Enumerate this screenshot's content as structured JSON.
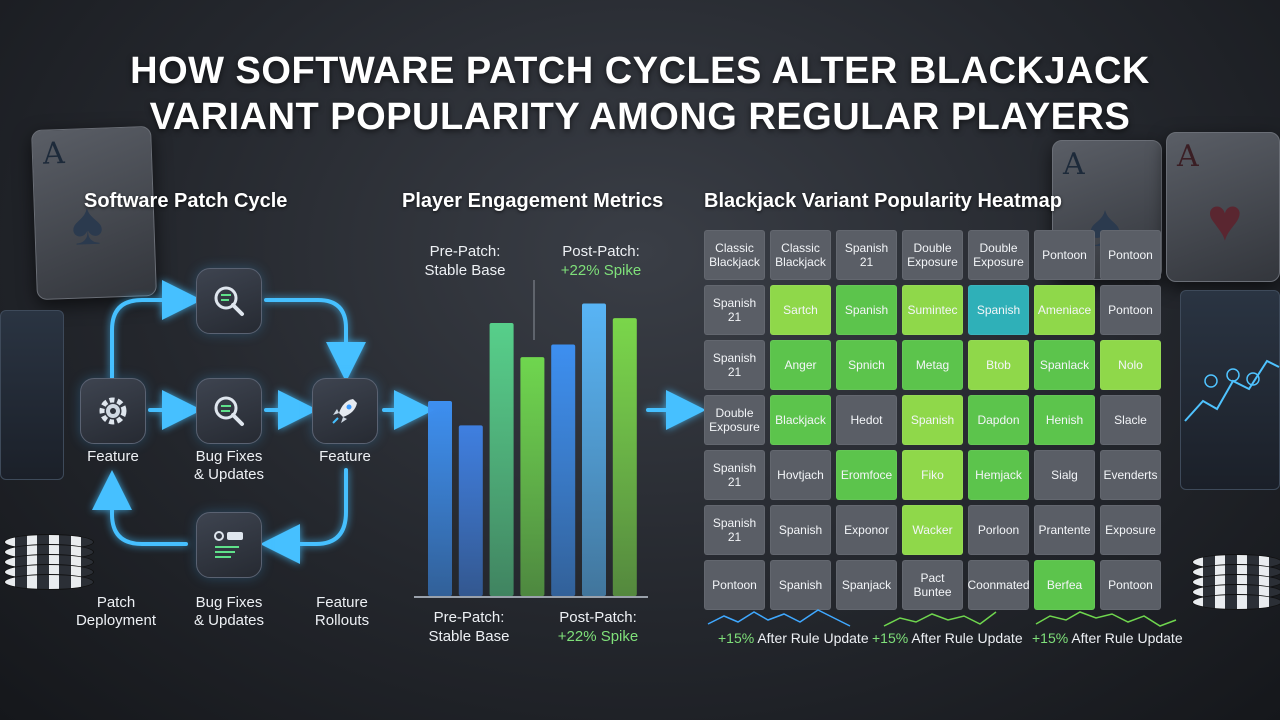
{
  "title": {
    "line1": "HOW SOFTWARE PATCH CYCLES ALTER BLACKJACK",
    "line2": "VARIANT POPULARITY AMONG REGULAR PLAYERS"
  },
  "decor": {
    "card_rank": "A",
    "suit_spade": "♠",
    "suit_heart": "♥"
  },
  "flow": {
    "title": "Software Patch Cycle",
    "labels": {
      "feature_left": "Feature",
      "bug_middle_line1": "Bug Fixes",
      "bug_middle_line2": "& Updates",
      "feature_right": "Feature",
      "patch_line1": "Patch",
      "patch_line2": "Deployment",
      "bug_bottom_line1": "Bug Fixes",
      "bug_bottom_line2": "& Updates",
      "rollouts_line1": "Feature",
      "rollouts_line2": "Rollouts"
    },
    "icons": [
      "gear-icon",
      "code-search-icon",
      "magnifier-icon",
      "rocket-icon",
      "update-panel-icon"
    ],
    "accent": "#3fb8ff"
  },
  "chart_data": {
    "type": "bar",
    "title": "Player Engagement Metrics",
    "annotations": {
      "pre_top_line1": "Pre-Patch:",
      "pre_top_line2": "Stable Base",
      "post_top_line1": "Post-Patch:",
      "post_top_line2": "+22% Spike",
      "pre_bottom_line1": "Pre-Patch:",
      "pre_bottom_line2": "Stable Base",
      "post_bottom_line1": "Post-Patch:",
      "post_bottom_line2": "+22% Spike"
    },
    "values": [
      200,
      175,
      280,
      245,
      258,
      300,
      285
    ],
    "colors": [
      "#3d8ff0",
      "#3f7fe0",
      "#57cf8a",
      "#6fd64e",
      "#3d8ff0",
      "#58b4f5",
      "#7ad64a"
    ],
    "ylim": [
      0,
      320
    ],
    "grid": false
  },
  "heatmap": {
    "title": "Blackjack Variant Popularity Heatmap",
    "colors": {
      "gray": "#5a5e66",
      "green": "#5cc44c",
      "light": "#8fd84a",
      "teal": "#2fb0b8"
    },
    "rows": [
      [
        {
          "text": "Classic Blackjack",
          "c": "gray"
        },
        {
          "text": "Classic Blackjack",
          "c": "gray"
        },
        {
          "text": "Spanish 21",
          "c": "gray"
        },
        {
          "text": "Double Exposure",
          "c": "gray"
        },
        {
          "text": "Double Exposure",
          "c": "gray"
        },
        {
          "text": "Pontoon",
          "c": "gray"
        },
        {
          "text": "Pontoon",
          "c": "gray"
        }
      ],
      [
        {
          "text": "Spanish 21",
          "c": "gray"
        },
        {
          "text": "Sartch",
          "c": "light"
        },
        {
          "text": "Spanish",
          "c": "green"
        },
        {
          "text": "Sumintec",
          "c": "light"
        },
        {
          "text": "Spanish",
          "c": "teal"
        },
        {
          "text": "Ameniace",
          "c": "light"
        },
        {
          "text": "Pontoon",
          "c": "gray"
        }
      ],
      [
        {
          "text": "Spanish 21",
          "c": "gray"
        },
        {
          "text": "Anger",
          "c": "green"
        },
        {
          "text": "Spnich",
          "c": "green"
        },
        {
          "text": "Metag",
          "c": "green"
        },
        {
          "text": "Btob",
          "c": "light"
        },
        {
          "text": "Spanlack",
          "c": "green"
        },
        {
          "text": "Nolo",
          "c": "light"
        }
      ],
      [
        {
          "text": "Double Exposure",
          "c": "gray"
        },
        {
          "text": "Blackjack",
          "c": "green"
        },
        {
          "text": "Hedot",
          "c": "gray"
        },
        {
          "text": "Spanish",
          "c": "light"
        },
        {
          "text": "Dapdon",
          "c": "green"
        },
        {
          "text": "Henish",
          "c": "green"
        },
        {
          "text": "Slacle",
          "c": "gray"
        }
      ],
      [
        {
          "text": "Spanish 21",
          "c": "gray"
        },
        {
          "text": "Hovtjach",
          "c": "gray"
        },
        {
          "text": "Eromfoce",
          "c": "green"
        },
        {
          "text": "Fiko",
          "c": "light"
        },
        {
          "text": "Hemjack",
          "c": "green"
        },
        {
          "text": "Sialg",
          "c": "gray"
        },
        {
          "text": "Evenderts",
          "c": "gray"
        }
      ],
      [
        {
          "text": "Spanish 21",
          "c": "gray"
        },
        {
          "text": "Spanish",
          "c": "gray"
        },
        {
          "text": "Exponor",
          "c": "gray"
        },
        {
          "text": "Wacker",
          "c": "light"
        },
        {
          "text": "Porloon",
          "c": "gray"
        },
        {
          "text": "Prantente",
          "c": "gray"
        },
        {
          "text": "Exposure",
          "c": "gray"
        }
      ],
      [
        {
          "text": "Pontoon",
          "c": "gray"
        },
        {
          "text": "Spanish",
          "c": "gray"
        },
        {
          "text": "Spanjack",
          "c": "gray"
        },
        {
          "text": "Pact Buntee",
          "c": "gray"
        },
        {
          "text": "Coonmated",
          "c": "gray"
        },
        {
          "text": "Berfea",
          "c": "green"
        },
        {
          "text": "Pontoon",
          "c": "gray"
        }
      ]
    ],
    "footnotes": [
      {
        "pct": "+15%",
        "text": "After Rule Update"
      },
      {
        "pct": "+15%",
        "text": "After Rule Update"
      },
      {
        "pct": "+15%",
        "text": "After Rule Update"
      }
    ]
  }
}
